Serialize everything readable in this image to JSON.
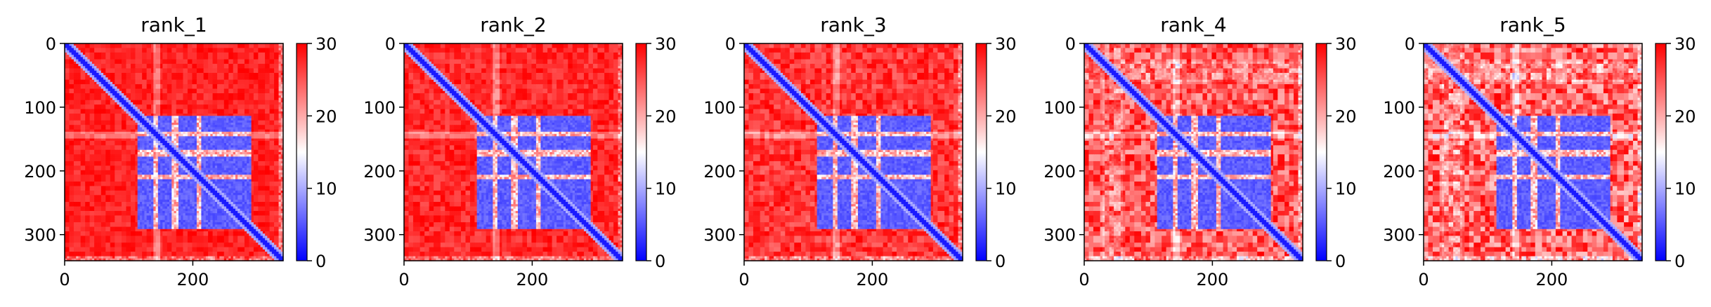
{
  "chart_data": {
    "type": "heatmap",
    "colormap": "bwr",
    "colorbar": {
      "min": 0,
      "max": 30,
      "ticks": [
        0,
        10,
        20,
        30
      ]
    },
    "x_ticks": [
      0,
      200
    ],
    "y_ticks": [
      0,
      100,
      200,
      300
    ],
    "matrix_size": 341,
    "panels": [
      {
        "title": "rank_1",
        "noise": 0.1
      },
      {
        "title": "rank_2",
        "noise": 0.12
      },
      {
        "title": "rank_3",
        "noise": 0.16
      },
      {
        "title": "rank_4",
        "noise": 0.26
      },
      {
        "title": "rank_5",
        "noise": 0.3
      }
    ]
  },
  "colors": {
    "low": "#0000ff",
    "mid": "#ffffff",
    "high": "#ff0000"
  }
}
